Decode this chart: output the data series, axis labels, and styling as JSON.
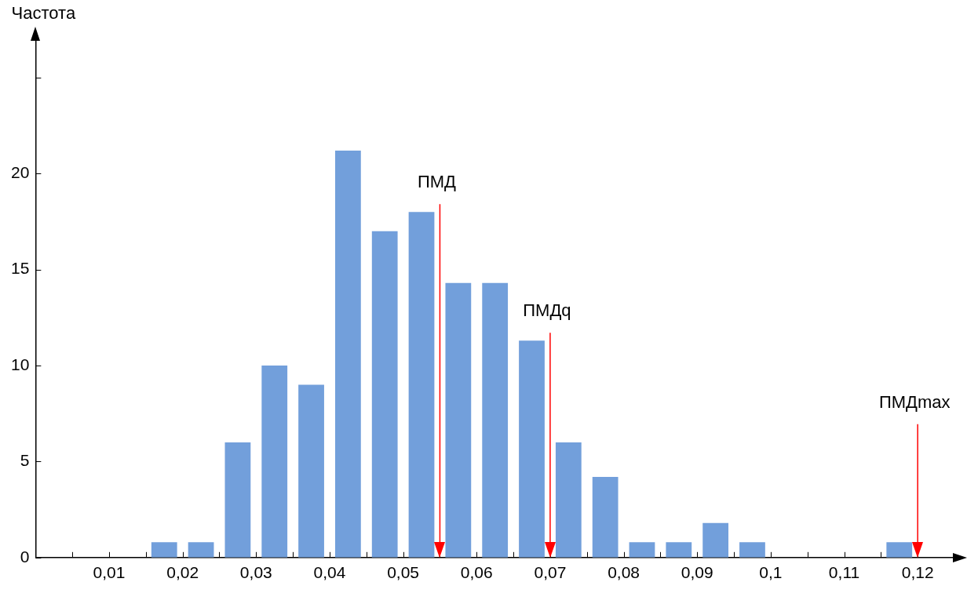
{
  "chart_data": {
    "type": "histogram",
    "ylabel": "Частота",
    "bins": [
      0.015,
      0.02,
      0.025,
      0.03,
      0.035,
      0.04,
      0.045,
      0.05,
      0.055,
      0.06,
      0.065,
      0.07,
      0.075,
      0.08,
      0.085,
      0.09,
      0.095,
      0.1,
      0.105,
      0.11,
      0.115,
      0.12
    ],
    "values": [
      0.8,
      0.8,
      6,
      10,
      9,
      21.2,
      17,
      18,
      14.3,
      14.3,
      11.3,
      6,
      4.2,
      0.8,
      0.8,
      1.8,
      0.8,
      0,
      0,
      0,
      0.8
    ],
    "color": "#729fdb",
    "xlim": [
      0,
      0.125
    ],
    "xticks": [
      {
        "value": 0.005,
        "label": null
      },
      {
        "value": 0.01,
        "label": "0,01"
      },
      {
        "value": 0.015,
        "label": null
      },
      {
        "value": 0.02,
        "label": "0,02"
      },
      {
        "value": 0.025,
        "label": null
      },
      {
        "value": 0.03,
        "label": "0,03"
      },
      {
        "value": 0.035,
        "label": null
      },
      {
        "value": 0.04,
        "label": "0,04"
      },
      {
        "value": 0.045,
        "label": null
      },
      {
        "value": 0.05,
        "label": "0,05"
      },
      {
        "value": 0.055,
        "label": null
      },
      {
        "value": 0.06,
        "label": "0,06"
      },
      {
        "value": 0.065,
        "label": null
      },
      {
        "value": 0.07,
        "label": "0,07"
      },
      {
        "value": 0.075,
        "label": null
      },
      {
        "value": 0.08,
        "label": "0,08"
      },
      {
        "value": 0.085,
        "label": null
      },
      {
        "value": 0.09,
        "label": "0,09"
      },
      {
        "value": 0.095,
        "label": null
      },
      {
        "value": 0.1,
        "label": "0,1"
      },
      {
        "value": 0.105,
        "label": null
      },
      {
        "value": 0.11,
        "label": "0,11"
      },
      {
        "value": 0.115,
        "label": null
      },
      {
        "value": 0.12,
        "label": "0,12"
      }
    ],
    "ylim": [
      0,
      27
    ],
    "yticks": [
      0,
      5,
      10,
      15,
      20,
      {
        "value": 25,
        "label": null
      }
    ],
    "ref_lines": [
      {
        "axis": "x",
        "value": 0.055,
        "label": "ПМД",
        "color": "#ff0000"
      },
      {
        "axis": "x",
        "value": 0.07,
        "label": "ПМДq",
        "color": "#ff0000"
      },
      {
        "axis": "x",
        "value": 0.12,
        "label": "ПМДmax",
        "color": "#ff0000"
      }
    ],
    "grid": false,
    "legend": false
  }
}
